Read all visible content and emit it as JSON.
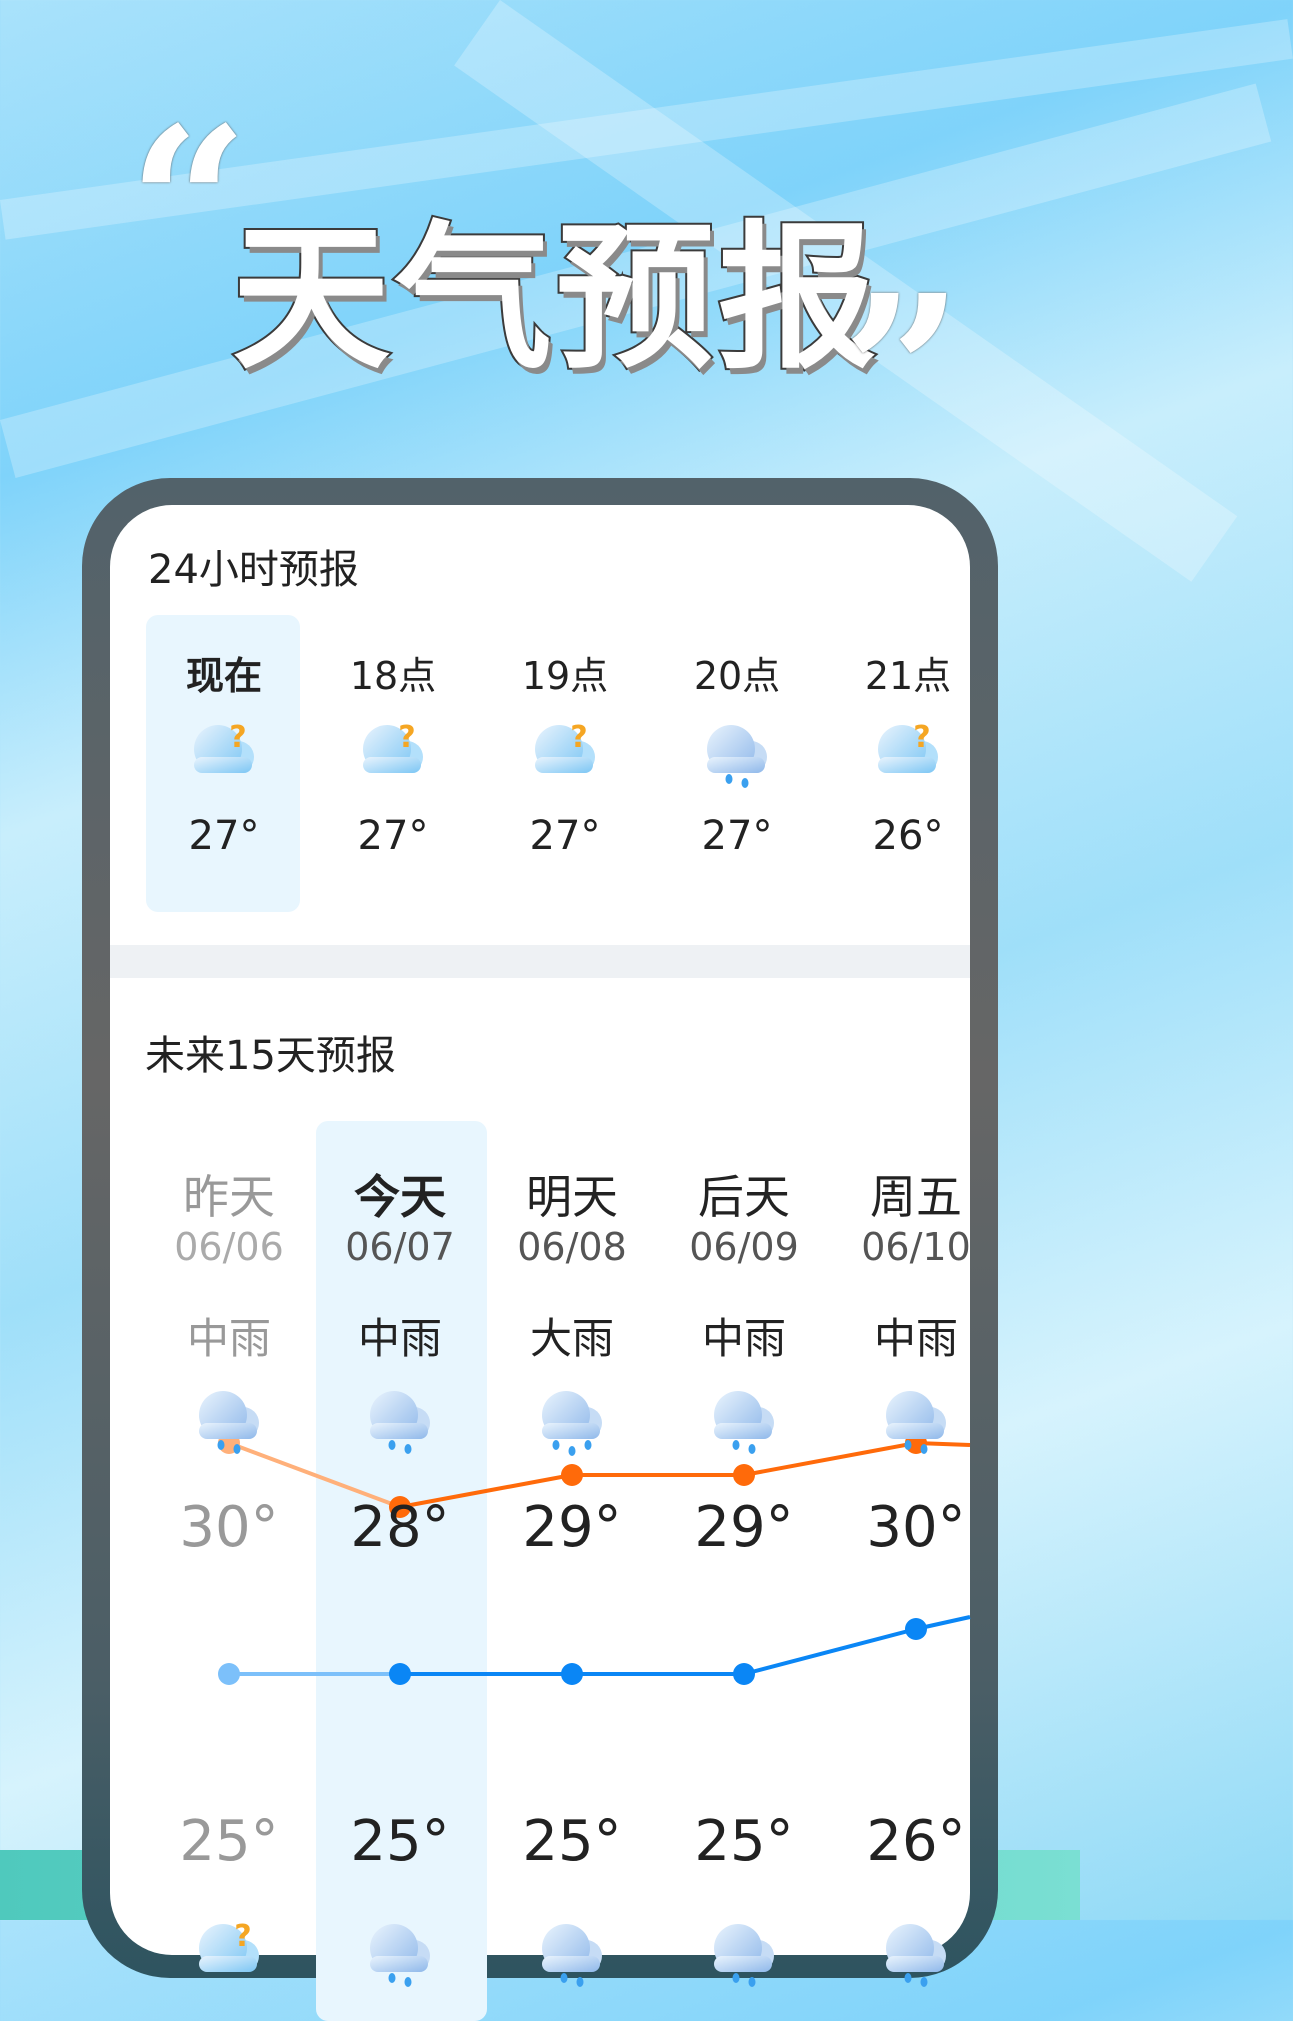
{
  "banner": {
    "title": "天气预报",
    "open_quote": "“",
    "close_quote": "”"
  },
  "hourly": {
    "title": "24小时预报",
    "items": [
      {
        "label": "现在",
        "icon": "cloudy-icon",
        "temp": "27°",
        "selected": true
      },
      {
        "label": "18点",
        "icon": "cloudy-icon",
        "temp": "27°"
      },
      {
        "label": "19点",
        "icon": "cloudy-icon",
        "temp": "27°"
      },
      {
        "label": "20点",
        "icon": "light-rain-icon",
        "temp": "27°"
      },
      {
        "label": "21点",
        "icon": "cloudy-icon",
        "temp": "26°"
      }
    ]
  },
  "daily": {
    "title": "未来15天预报",
    "items": [
      {
        "day": "昨天",
        "date": "06/06",
        "condition": "中雨",
        "icon": "moderate-rain-icon",
        "high": "30°",
        "low": "25°",
        "past": true
      },
      {
        "day": "今天",
        "date": "06/07",
        "condition": "中雨",
        "icon": "moderate-rain-icon",
        "high": "28°",
        "low": "25°",
        "selected": true
      },
      {
        "day": "明天",
        "date": "06/08",
        "condition": "大雨",
        "icon": "heavy-rain-icon",
        "high": "29°",
        "low": "25°"
      },
      {
        "day": "后天",
        "date": "06/09",
        "condition": "中雨",
        "icon": "moderate-rain-icon",
        "high": "29°",
        "low": "25°"
      },
      {
        "day": "周五",
        "date": "06/10",
        "condition": "中雨",
        "icon": "moderate-rain-icon",
        "high": "30°",
        "low": "26°"
      }
    ],
    "high_values": [
      30,
      28,
      29,
      29,
      30
    ],
    "low_values": [
      25,
      25,
      25,
      25,
      26
    ],
    "colors": {
      "high": "#ff6a0a",
      "high_past": "#ffb07a",
      "low": "#0a86f5",
      "low_past": "#7cc0fa",
      "highlight": "#e8f6fe"
    }
  }
}
